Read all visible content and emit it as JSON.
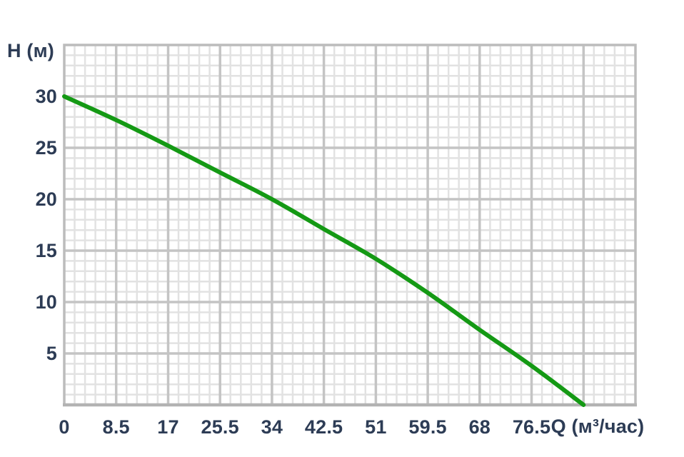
{
  "colors": {
    "background": "#ffffff",
    "text": "#2d3c55",
    "grid_minor": "#e2e2e2",
    "grid_major": "#c4c4c4",
    "plot_border": "#bcbcbc",
    "bottom_axis": "#b3b3b3",
    "curve": "#149914"
  },
  "chart_data": {
    "type": "line",
    "title": "",
    "xlabel": "Q (м³/час)",
    "ylabel": "H (м)",
    "xlim": [
      0,
      93.5
    ],
    "ylim": [
      0,
      35
    ],
    "x_major_step": 8.5,
    "x_minor_step": 1.7,
    "y_major_step": 5,
    "y_minor_step": 1,
    "grid": "major+minor",
    "legend": "none",
    "x_ticks": [
      0,
      8.5,
      17,
      25.5,
      34,
      42.5,
      51,
      59.5,
      68,
      76.5
    ],
    "x_tick_labels": [
      "0",
      "8.5",
      "17",
      "25.5",
      "34",
      "42.5",
      "51",
      "59.5",
      "68",
      "76.5"
    ],
    "y_ticks": [
      30,
      25,
      20,
      15,
      10,
      5
    ],
    "y_tick_labels": [
      "30",
      "25",
      "20",
      "15",
      "10",
      "5"
    ],
    "series": [
      {
        "name": "pump-head-curve",
        "color": "#149914",
        "x": [
          0,
          8.5,
          17,
          25.5,
          34,
          42.5,
          51,
          59.5,
          68,
          76.5,
          85
        ],
        "y": [
          30,
          27.7,
          25.2,
          22.6,
          20,
          17.1,
          14.2,
          10.9,
          7.3,
          3.8,
          0
        ]
      }
    ]
  }
}
